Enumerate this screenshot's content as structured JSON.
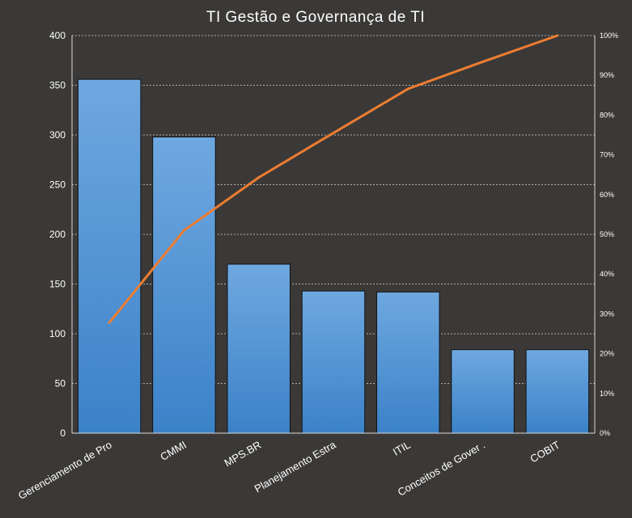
{
  "chart_data": {
    "type": "bar",
    "title": "TI Gestão e Governança de TI",
    "categories": [
      "Gerenciamento de Pro",
      "CMMI",
      "MPS.BR",
      "Planejamento Estra",
      "ITIL",
      "Conceitos de Gover .",
      "COBIT"
    ],
    "series": [
      {
        "type": "bar",
        "values": [
          356,
          298,
          170,
          143,
          142,
          84,
          84
        ]
      },
      {
        "type": "line",
        "axis": "secondary",
        "values": [
          27.8,
          51,
          64.3,
          75.5,
          86.6,
          93.4,
          100
        ]
      }
    ],
    "ylim": [
      0,
      400
    ],
    "yticks": [
      "0",
      "50",
      "100",
      "150",
      "200",
      "250",
      "300",
      "350",
      "400"
    ],
    "y2lim": [
      0,
      100
    ],
    "y2ticks": [
      "0%",
      "10%",
      "20%",
      "30%",
      "40%",
      "50%",
      "60%",
      "70%",
      "80%",
      "90%",
      "100%"
    ],
    "grid": true,
    "legend": "none",
    "colors": {
      "bar_top": "#6fa8e0",
      "bar_bottom": "#3b82c8",
      "line": "#ed7d31",
      "background": "#3b3937"
    }
  }
}
